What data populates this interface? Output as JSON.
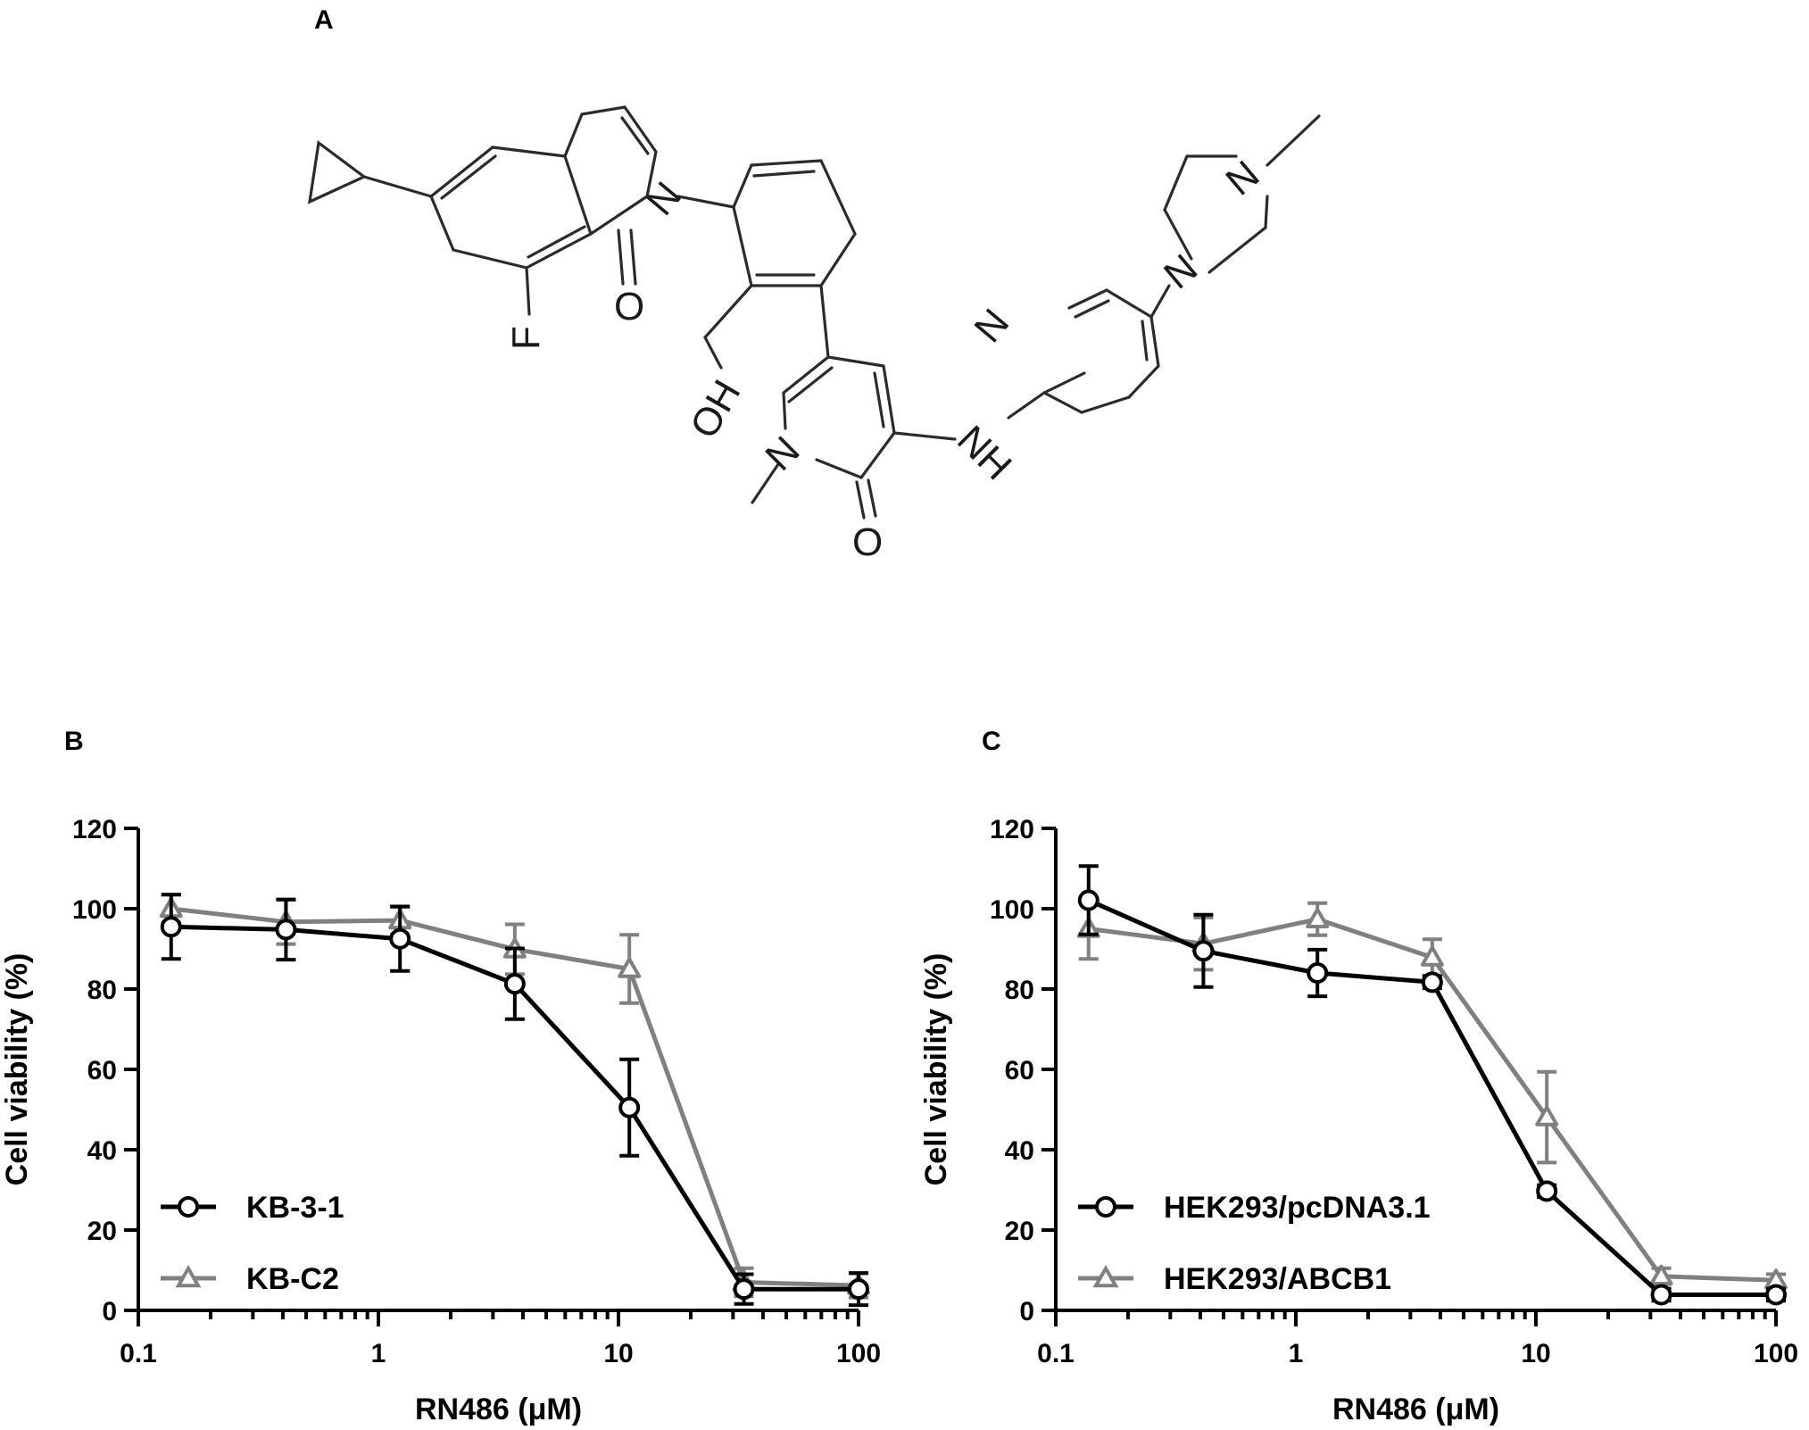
{
  "panels": {
    "a": "A",
    "b": "B",
    "c": "C"
  },
  "structure": {
    "atoms": {
      "f": "F",
      "n_iso": "N",
      "o_carbonyl": "O",
      "oh": "OH",
      "n_pyridone": "N",
      "o_pyridone": "O",
      "nh": "NH",
      "n_pyridine": "N",
      "n_pip1": "N",
      "n_pip2": "N"
    }
  },
  "colors": {
    "black_series": "#000000",
    "gray_series": "#808080"
  },
  "chart_data": [
    {
      "type": "line",
      "panel": "B",
      "title": "",
      "xlabel": "RN486 (μM)",
      "ylabel": "Cell viability (%)",
      "xscale": "log",
      "xlim": [
        0.1,
        100
      ],
      "ylim": [
        0,
        120
      ],
      "xticks": [
        "0.1",
        "1",
        "10",
        "100"
      ],
      "yticks": [
        "0",
        "20",
        "40",
        "60",
        "80",
        "100",
        "120"
      ],
      "legend_position": "bottom-left",
      "series": [
        {
          "name": "KB-3-1",
          "color": "#000000",
          "marker": "circle",
          "x": [
            0.137,
            0.412,
            1.23,
            3.7,
            11.1,
            33.3,
            100
          ],
          "y": [
            95.5,
            94.8,
            92.5,
            81.3,
            50.5,
            5.3,
            5.3
          ],
          "err": [
            8.0,
            7.5,
            8.0,
            8.8,
            12.0,
            3.7,
            4.0
          ]
        },
        {
          "name": "KB-C2",
          "color": "#808080",
          "marker": "triangle",
          "x": [
            0.137,
            0.412,
            1.23,
            3.7,
            11.1,
            33.3,
            100
          ],
          "y": [
            100.0,
            96.7,
            97.1,
            89.9,
            85.0,
            7.0,
            6.2
          ],
          "err": [
            3.5,
            5.5,
            3.5,
            6.2,
            8.5,
            3.5,
            3.0
          ]
        }
      ]
    },
    {
      "type": "line",
      "panel": "C",
      "title": "",
      "xlabel": "RN486 (μM)",
      "ylabel": "Cell viability (%)",
      "xscale": "log",
      "xlim": [
        0.1,
        100
      ],
      "ylim": [
        0,
        120
      ],
      "xticks": [
        "0.1",
        "1",
        "10",
        "100"
      ],
      "yticks": [
        "0",
        "20",
        "40",
        "60",
        "80",
        "100",
        "120"
      ],
      "legend_position": "bottom-left",
      "series": [
        {
          "name": "HEK293/pcDNA3.1",
          "color": "#000000",
          "marker": "circle",
          "x": [
            0.137,
            0.412,
            1.23,
            3.7,
            11.1,
            33.3,
            100
          ],
          "y": [
            102.1,
            89.5,
            84.0,
            81.7,
            29.7,
            3.9,
            3.9
          ],
          "err": [
            8.5,
            9.0,
            5.8,
            1.5,
            1.5,
            1.5,
            1.5
          ]
        },
        {
          "name": "HEK293/ABCB1",
          "color": "#808080",
          "marker": "triangle",
          "x": [
            0.137,
            0.412,
            1.23,
            3.7,
            11.1,
            33.3,
            100
          ],
          "y": [
            95.0,
            91.3,
            97.4,
            87.9,
            48.1,
            8.5,
            7.5
          ],
          "err": [
            7.5,
            6.5,
            4.0,
            4.5,
            11.3,
            2.0,
            1.5
          ]
        }
      ]
    }
  ]
}
